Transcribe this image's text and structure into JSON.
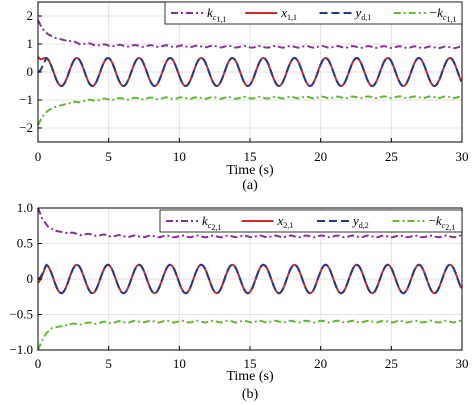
{
  "chart_data": [
    {
      "type": "line",
      "panel": "(a)",
      "xlabel": "Time (s)",
      "xlim": [
        0,
        30
      ],
      "ylim": [
        -2.5,
        2.5
      ],
      "xticks": [
        "0",
        "5",
        "10",
        "15",
        "20",
        "25",
        "30"
      ],
      "yticks": [
        "2",
        "1",
        "0",
        "−1",
        "−2"
      ],
      "grid": true,
      "legend_position": "top-right",
      "sine": {
        "amplitude": 0.5,
        "period": 2.2
      },
      "series": [
        {
          "name": "k_{c1,1}",
          "legend_main": "k",
          "legend_sub": "c",
          "legend_sub2": "1,1",
          "legend_prefix": "",
          "color": "#8B2F9A",
          "dash": "7,3,2,3",
          "points": [
            [
              0,
              1.85
            ],
            [
              0.3,
              1.55
            ],
            [
              0.7,
              1.35
            ],
            [
              1.2,
              1.22
            ],
            [
              2,
              1.12
            ],
            [
              3,
              1.02
            ],
            [
              4,
              0.98
            ],
            [
              5,
              0.95
            ],
            [
              7,
              0.93
            ],
            [
              10,
              0.92
            ],
            [
              15,
              0.9
            ],
            [
              20,
              0.9
            ],
            [
              25,
              0.89
            ],
            [
              30,
              0.88
            ]
          ]
        },
        {
          "name": "x_{1,1}",
          "legend_main": "x",
          "legend_sub": "1,1",
          "legend_sub2": "",
          "legend_prefix": "",
          "color": "#D62728",
          "dash": "",
          "kind": "sine",
          "start": 0.55
        },
        {
          "name": "y_{d,1}",
          "legend_main": "y",
          "legend_sub": "d,1",
          "legend_sub2": "",
          "legend_prefix": "",
          "color": "#1F3A93",
          "dash": "8,4",
          "kind": "sine",
          "start": 0.0
        },
        {
          "name": "−k_{c1,1}",
          "legend_main": "k",
          "legend_sub": "c",
          "legend_sub2": "1,1",
          "legend_prefix": "−",
          "color": "#5DBB2E",
          "dash": "7,3,2,3",
          "points": [
            [
              0,
              -1.9
            ],
            [
              0.3,
              -1.6
            ],
            [
              0.7,
              -1.38
            ],
            [
              1.2,
              -1.25
            ],
            [
              2,
              -1.14
            ],
            [
              3,
              -1.05
            ],
            [
              4,
              -1.0
            ],
            [
              5,
              -0.97
            ],
            [
              7,
              -0.95
            ],
            [
              10,
              -0.93
            ],
            [
              15,
              -0.92
            ],
            [
              20,
              -0.91
            ],
            [
              25,
              -0.9
            ],
            [
              30,
              -0.9
            ]
          ]
        }
      ],
      "caption": "(a)"
    },
    {
      "type": "line",
      "panel": "(b)",
      "xlabel": "Time (s)",
      "xlim": [
        0,
        30
      ],
      "ylim": [
        -1.0,
        1.0
      ],
      "xticks": [
        "0",
        "5",
        "10",
        "15",
        "20",
        "25",
        "30"
      ],
      "yticks": [
        "1.0",
        "0.5",
        "0",
        "−0.5",
        "−1.0"
      ],
      "grid": true,
      "legend_position": "top-right",
      "sine": {
        "amplitude": 0.2,
        "period": 2.2
      },
      "series": [
        {
          "name": "k_{c2,1}",
          "legend_main": "k",
          "legend_sub": "c",
          "legend_sub2": "2,1",
          "legend_prefix": "",
          "color": "#8B2F9A",
          "dash": "7,3,2,3",
          "points": [
            [
              0,
              1.0
            ],
            [
              0.3,
              0.85
            ],
            [
              0.7,
              0.74
            ],
            [
              1.2,
              0.68
            ],
            [
              2,
              0.65
            ],
            [
              3,
              0.63
            ],
            [
              4,
              0.62
            ],
            [
              5,
              0.61
            ],
            [
              7,
              0.6
            ],
            [
              10,
              0.6
            ],
            [
              15,
              0.6
            ],
            [
              20,
              0.6
            ],
            [
              25,
              0.6
            ],
            [
              30,
              0.6
            ]
          ]
        },
        {
          "name": "x_{2,1}",
          "legend_main": "x",
          "legend_sub": "2,1",
          "legend_sub2": "",
          "legend_prefix": "",
          "color": "#D62728",
          "dash": "",
          "kind": "sine",
          "start": -0.05
        },
        {
          "name": "y_{d,2}",
          "legend_main": "y",
          "legend_sub": "d,2",
          "legend_sub2": "",
          "legend_prefix": "",
          "color": "#1F3A93",
          "dash": "8,4",
          "kind": "sine",
          "start": 0.0
        },
        {
          "name": "−k_{c2,1}",
          "legend_main": "k",
          "legend_sub": "c",
          "legend_sub2": "2,1",
          "legend_prefix": "−",
          "color": "#5DBB2E",
          "dash": "7,3,2,3",
          "points": [
            [
              0,
              -1.0
            ],
            [
              0.25,
              -0.88
            ],
            [
              0.6,
              -0.76
            ],
            [
              1.0,
              -0.69
            ],
            [
              2,
              -0.65
            ],
            [
              3,
              -0.63
            ],
            [
              4,
              -0.62
            ],
            [
              5,
              -0.61
            ],
            [
              7,
              -0.6
            ],
            [
              10,
              -0.6
            ],
            [
              15,
              -0.6
            ],
            [
              20,
              -0.6
            ],
            [
              25,
              -0.6
            ],
            [
              30,
              -0.6
            ]
          ]
        }
      ],
      "caption": "(b)"
    }
  ]
}
